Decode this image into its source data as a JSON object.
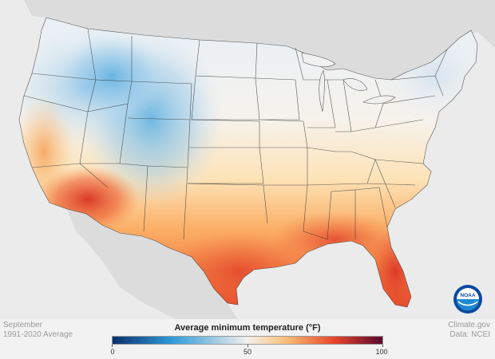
{
  "map": {
    "legend_title": "Average minimum temperature (°F)",
    "scale_min": 0,
    "scale_max": 100,
    "ticks": [
      "0",
      "50",
      "100"
    ],
    "colors": {
      "cold": "#0b2f6b",
      "cool": "#2f9ad8",
      "neutral": "#f4f1ec",
      "warm": "#fbc07a",
      "hot": "#e8452b",
      "extreme": "#5a0a2e",
      "ocean": "#e6e6e6",
      "land_outside": "#d8d8d8"
    }
  },
  "footer": {
    "period_month": "September",
    "period_range": "1991-2020 Average",
    "source_site": "Climate.gov",
    "source_data": "Data: NCEI"
  },
  "logo": {
    "text": "NOAA",
    "icon": "noaa-logo-icon"
  }
}
